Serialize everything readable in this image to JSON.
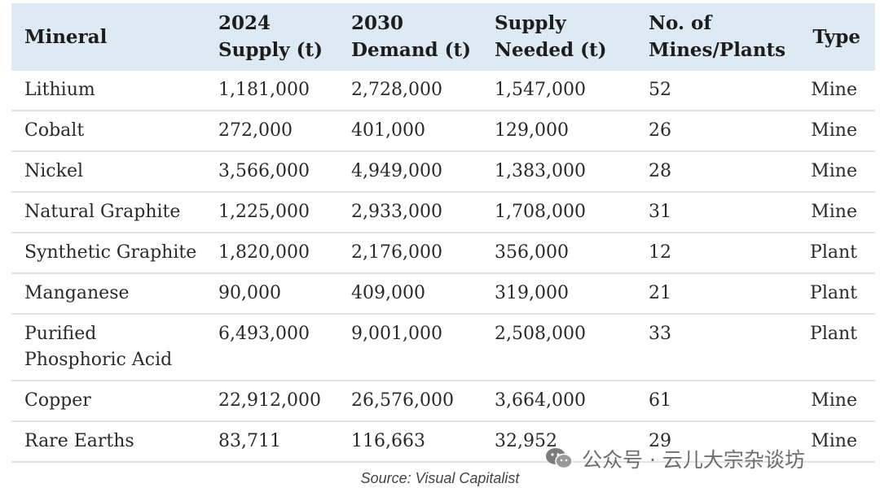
{
  "table": {
    "headers": {
      "mineral": "Mineral",
      "supply_2024": [
        "2024",
        "Supply (t)"
      ],
      "demand_2030": [
        "2030",
        "Demand (t)"
      ],
      "supply_needed": [
        "Supply",
        "Needed (t)"
      ],
      "mines_plants": [
        "No. of",
        "Mines/Plants"
      ],
      "type": "Type"
    },
    "rows": [
      {
        "mineral": "Lithium",
        "supply_2024": "1,181,000",
        "demand_2030": "2,728,000",
        "supply_needed": "1,547,000",
        "count": "52",
        "type": "Mine"
      },
      {
        "mineral": "Cobalt",
        "supply_2024": "272,000",
        "demand_2030": "401,000",
        "supply_needed": "129,000",
        "count": "26",
        "type": "Mine"
      },
      {
        "mineral": "Nickel",
        "supply_2024": "3,566,000",
        "demand_2030": "4,949,000",
        "supply_needed": "1,383,000",
        "count": "28",
        "type": "Mine"
      },
      {
        "mineral": "Natural Graphite",
        "supply_2024": "1,225,000",
        "demand_2030": "2,933,000",
        "supply_needed": "1,708,000",
        "count": "31",
        "type": "Mine"
      },
      {
        "mineral": "Synthetic Graphite",
        "supply_2024": "1,820,000",
        "demand_2030": "2,176,000",
        "supply_needed": "356,000",
        "count": "12",
        "type": "Plant"
      },
      {
        "mineral": "Manganese",
        "supply_2024": "90,000",
        "demand_2030": "409,000",
        "supply_needed": "319,000",
        "count": "21",
        "type": "Plant"
      },
      {
        "mineral": "Purified Phosphoric Acid",
        "supply_2024": "6,493,000",
        "demand_2030": "9,001,000",
        "supply_needed": "2,508,000",
        "count": "33",
        "type": "Plant"
      },
      {
        "mineral": "Copper",
        "supply_2024": "22,912,000",
        "demand_2030": "26,576,000",
        "supply_needed": "3,664,000",
        "count": "61",
        "type": "Mine"
      },
      {
        "mineral": "Rare Earths",
        "supply_2024": "83,711",
        "demand_2030": "116,663",
        "supply_needed": "32,952",
        "count": "29",
        "type": "Mine"
      }
    ]
  },
  "source": "Source: Visual Capitalist",
  "watermark": {
    "text": "公众号 · 云儿大宗杂谈坊",
    "icon": "wechat-icon",
    "color": "#555555"
  },
  "colors": {
    "header_bg": "#dde9f3",
    "row_divider": "#e2e2e2"
  }
}
